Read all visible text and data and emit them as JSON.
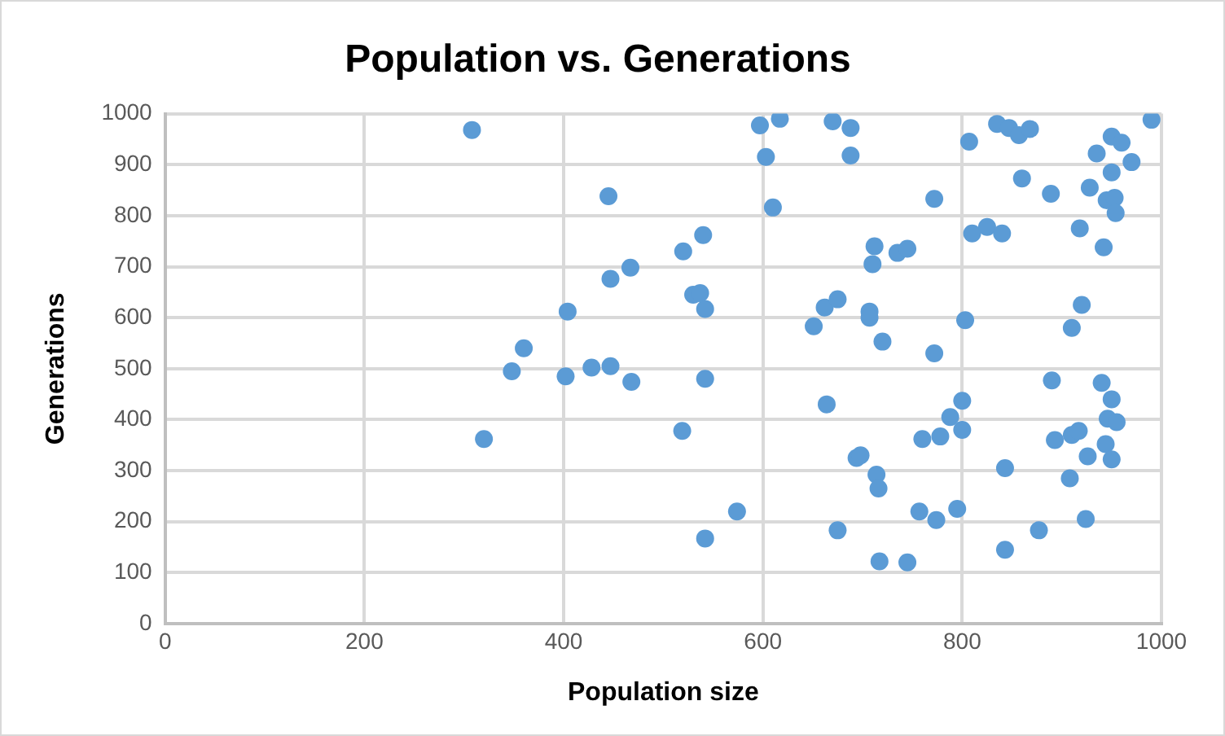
{
  "chart_data": {
    "type": "scatter",
    "title": "Population vs. Generations",
    "xlabel": "Population size",
    "ylabel": "Generations",
    "x": [
      308,
      320,
      348,
      360,
      402,
      404,
      428,
      445,
      447,
      447,
      467,
      468,
      519,
      520,
      530,
      537,
      540,
      542,
      542,
      542,
      574,
      597,
      603,
      610,
      617,
      651,
      662,
      664,
      670,
      675,
      675,
      688,
      688,
      694,
      698,
      707,
      707,
      710,
      712,
      714,
      716,
      717,
      720,
      735,
      745,
      745,
      757,
      760,
      772,
      772,
      774,
      778,
      788,
      795,
      800,
      800,
      803,
      807,
      810,
      825,
      835,
      840,
      843,
      843,
      847,
      857,
      860,
      868,
      877,
      889,
      890,
      893,
      908,
      910,
      910,
      917,
      918,
      920,
      924,
      926,
      928,
      935,
      940,
      942,
      944,
      945,
      946,
      950,
      950,
      950,
      950,
      953,
      954,
      955,
      960,
      970,
      990
    ],
    "series": [
      {
        "color": "#5b9bd5",
        "values": [
          968,
          362,
          495,
          540,
          485,
          612,
          502,
          838,
          505,
          676,
          698,
          474,
          378,
          730,
          645,
          648,
          762,
          617,
          480,
          167,
          220,
          977,
          915,
          816,
          990,
          583,
          620,
          430,
          985,
          636,
          183,
          972,
          918,
          325,
          330,
          612,
          600,
          705,
          740,
          292,
          265,
          122,
          553,
          727,
          735,
          120,
          220,
          362,
          833,
          530,
          203,
          367,
          405,
          225,
          380,
          437,
          595,
          945,
          765,
          778,
          980,
          765,
          305,
          145,
          972,
          958,
          873,
          970,
          183,
          843,
          477,
          360,
          285,
          370,
          580,
          378,
          775,
          625,
          205,
          328,
          855,
          922,
          472,
          738,
          352,
          830,
          402,
          955,
          885,
          322,
          440,
          835,
          805,
          395,
          943,
          905,
          988
        ]
      }
    ],
    "xlim": [
      0,
      1000
    ],
    "xticks": [
      0,
      200,
      400,
      600,
      800,
      1000
    ],
    "ylim": [
      0,
      1000
    ],
    "yticks": [
      0,
      100,
      200,
      300,
      400,
      500,
      600,
      700,
      800,
      900,
      1000
    ],
    "grid": true,
    "legend": false,
    "marker": "circle"
  }
}
